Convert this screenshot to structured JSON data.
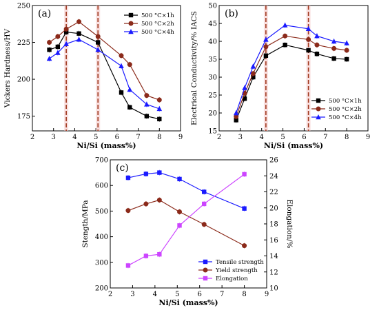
{
  "chart_data": [
    {
      "type": "line",
      "panel_label": "(a)",
      "xlabel": "Ni/Si (mass%)",
      "ylabel": "Vickers Hardness/HV",
      "xlim": [
        2,
        9
      ],
      "ylim": [
        165,
        250
      ],
      "xticks": [
        2,
        3,
        4,
        5,
        6,
        7,
        8,
        9
      ],
      "yticks": [
        175,
        200,
        225,
        250
      ],
      "legend_position": "top-right",
      "grid": false,
      "dashed_verticals": [
        3.6,
        5.1
      ],
      "x": [
        2.8,
        3.2,
        3.6,
        4.2,
        5.1,
        6.2,
        6.6,
        7.4,
        8.0
      ],
      "series": [
        {
          "name": "500 °C×1h",
          "color": "#000000",
          "marker": "square",
          "values": [
            220,
            222,
            232,
            231,
            225,
            191,
            181,
            175,
            173
          ]
        },
        {
          "name": "500 °C×2h",
          "color": "#8b2a1a",
          "marker": "circle",
          "values": [
            225,
            229,
            234,
            239,
            229,
            216,
            210,
            189,
            186
          ]
        },
        {
          "name": "500 °C×4h",
          "color": "#1a1aff",
          "marker": "triangle",
          "values": [
            214,
            218,
            224,
            227,
            220,
            209,
            193,
            183,
            180
          ]
        }
      ]
    },
    {
      "type": "line",
      "panel_label": "(b)",
      "xlabel": "Ni/Si (mass%)",
      "ylabel": "Electrical Conductivity/% IACS",
      "xlim": [
        2,
        9
      ],
      "ylim": [
        15,
        50
      ],
      "xticks": [
        2,
        3,
        4,
        5,
        6,
        7,
        8,
        9
      ],
      "yticks": [
        15,
        20,
        25,
        30,
        35,
        40,
        45,
        50
      ],
      "legend_position": "bottom-right",
      "grid": false,
      "dashed_verticals": [
        4.2,
        6.2
      ],
      "x": [
        2.8,
        3.2,
        3.6,
        4.2,
        5.1,
        6.2,
        6.6,
        7.4,
        8.0
      ],
      "series": [
        {
          "name": "500 °C×1h",
          "color": "#000000",
          "marker": "square",
          "values": [
            18,
            24,
            30,
            36,
            39,
            37.5,
            36.5,
            35.2,
            35
          ]
        },
        {
          "name": "500 °C×2h",
          "color": "#8b2a1a",
          "marker": "circle",
          "values": [
            19,
            25.5,
            31,
            38.5,
            41.5,
            40.5,
            39,
            38,
            37.5
          ]
        },
        {
          "name": "500 °C×4h",
          "color": "#1a1aff",
          "marker": "triangle",
          "values": [
            20,
            27,
            33,
            40.5,
            44.5,
            43.5,
            41.5,
            40,
            39.5
          ]
        }
      ]
    },
    {
      "type": "line",
      "panel_label": "(c)",
      "xlabel": "Ni/Si (mass%)",
      "ylabel": "Stength/MPa",
      "y2label": "Elongation/%",
      "xlim": [
        2,
        9
      ],
      "ylim": [
        200,
        700
      ],
      "y2lim": [
        10,
        26
      ],
      "xticks": [
        2,
        3,
        4,
        5,
        6,
        7,
        8,
        9
      ],
      "yticks": [
        200,
        300,
        400,
        500,
        600,
        700
      ],
      "y2ticks": [
        10,
        12,
        14,
        16,
        18,
        20,
        22,
        24,
        26
      ],
      "legend_position": "bottom-right",
      "grid": false,
      "x": [
        2.8,
        3.6,
        4.2,
        5.1,
        6.2,
        8.0
      ],
      "series": [
        {
          "name": "Tensile strength",
          "color": "#1a1aff",
          "marker": "square",
          "axis": "left",
          "values": [
            630,
            645,
            650,
            625,
            575,
            510
          ]
        },
        {
          "name": "Yield strength",
          "color": "#8b2a1a",
          "marker": "circle",
          "axis": "left",
          "values": [
            502,
            528,
            543,
            497,
            448,
            365
          ]
        },
        {
          "name": "Elongation",
          "color": "#cc44ff",
          "marker": "square",
          "axis": "right",
          "values": [
            12.8,
            14,
            14.2,
            17.8,
            20.5,
            24.2
          ]
        }
      ]
    }
  ]
}
